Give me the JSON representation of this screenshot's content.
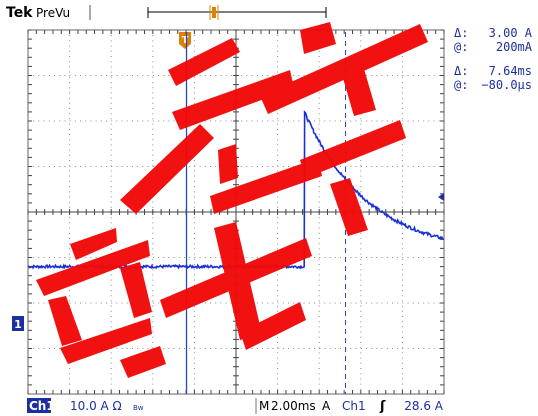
{
  "brand": "Tek",
  "mode": "PreVu",
  "trigger_marker_label": "T",
  "cursor_readout": {
    "amp_delta_symbol": "Δ:",
    "amp_delta": "3.00 A",
    "amp_at_symbol": "@:",
    "amp_at": "200mA",
    "time_delta_symbol": "Δ:",
    "time_delta": "7.64ms",
    "time_at_symbol": "@:",
    "time_at": "−80.0µs"
  },
  "channel_marker": "1",
  "status_bar": {
    "channel": "Ch1",
    "scale": "10.0 A Ω",
    "bw_symbol": "Bw",
    "timebase_prefix": "M",
    "timebase": "2.00ms",
    "trigger_mode": "A",
    "trigger_source": "Ch1",
    "trigger_slope": "ʃ",
    "trigger_level": "28.6 A"
  },
  "colors": {
    "trace": "#1a2fd6",
    "cursor": "#2a45c8",
    "grid": "#8a8a8a",
    "accent_orange": "#e08000",
    "watermark": "#f10a0a",
    "channel_badge": "#1d2fa0"
  },
  "waveform": {
    "description_units": "divisions",
    "baseline_level_div": -1.2,
    "step_time_div": 1.65,
    "peak_level_div": 2.0,
    "decay_tau_div": 1.55,
    "time_span_div": [
      -5,
      5
    ],
    "level_span_div": [
      -4,
      4
    ]
  }
}
